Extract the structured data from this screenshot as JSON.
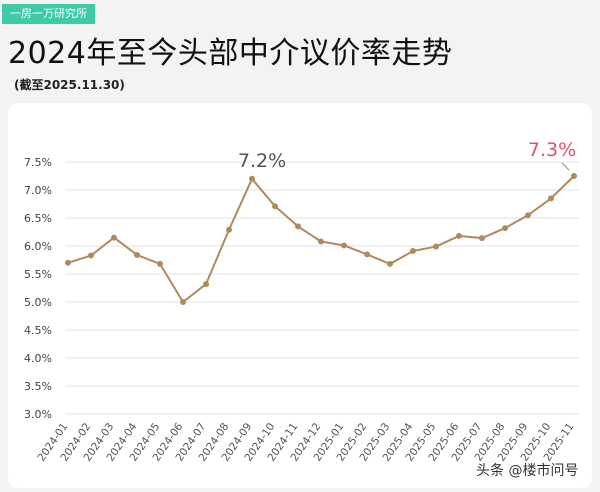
{
  "source_tag": "一房一万研究所",
  "title": "2024年至今头部中介议价率走势",
  "subtitle": "(截至2025.11.30)",
  "watermark": "头条 @楼市问号",
  "colors": {
    "line": "#b08a5e",
    "highlight": "#e0506a",
    "peak_label": "#555555",
    "source_tag_bg": "#3ec9a7"
  },
  "chart_data": {
    "type": "line",
    "title": "2024年至今头部中介议价率走势",
    "subtitle": "(截至2025.11.30)",
    "xlabel": "",
    "ylabel": "",
    "categories": [
      "2024-01",
      "2024-02",
      "2024-03",
      "2024-04",
      "2024-05",
      "2024-06",
      "2024-07",
      "2024-08",
      "2024-09",
      "2024-10",
      "2024-11",
      "2024-12",
      "2025-01",
      "2025-02",
      "2025-03",
      "2025-04",
      "2025-05",
      "2025-06",
      "2025-07",
      "2025-08",
      "2025-09",
      "2025-10",
      "2025-11"
    ],
    "values": [
      5.7,
      5.83,
      6.15,
      5.84,
      5.68,
      5.0,
      5.32,
      6.29,
      7.2,
      6.71,
      6.35,
      6.08,
      6.01,
      5.85,
      5.68,
      5.91,
      5.99,
      6.18,
      6.14,
      6.32,
      6.55,
      6.85,
      7.25
    ],
    "ylim": [
      3.0,
      7.5
    ],
    "yticks": [
      3.0,
      3.5,
      4.0,
      4.5,
      5.0,
      5.5,
      6.0,
      6.5,
      7.0,
      7.5
    ],
    "ytick_labels": [
      "3.0%",
      "3.5%",
      "4.0%",
      "4.5%",
      "5.0%",
      "5.5%",
      "6.0%",
      "6.5%",
      "7.0%",
      "7.5%"
    ],
    "grid": true,
    "legend": "none",
    "annotations": [
      {
        "label": "7.2%",
        "index": 8
      },
      {
        "label": "7.3%",
        "index": 22
      }
    ]
  }
}
